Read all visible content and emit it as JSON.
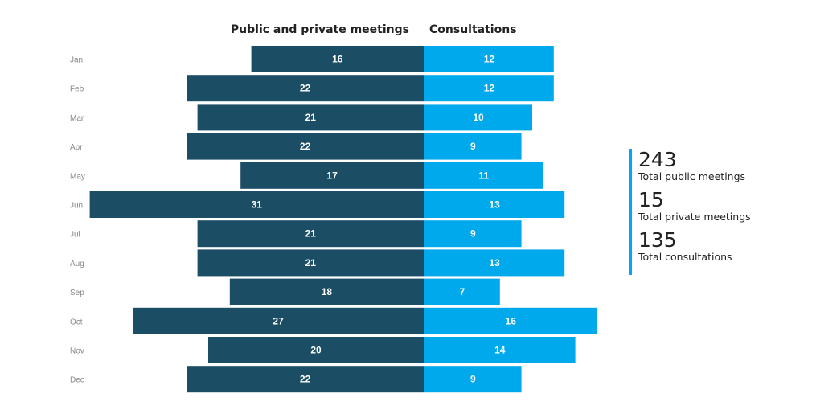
{
  "chart_data": {
    "type": "bar",
    "orientation": "horizontal-diverging",
    "categories": [
      "Jan",
      "Feb",
      "Mar",
      "Apr",
      "May",
      "Jun",
      "Jul",
      "Aug",
      "Sep",
      "Oct",
      "Nov",
      "Dec"
    ],
    "series": [
      {
        "name": "Public and private meetings",
        "side": "left",
        "color": "#1b4d64",
        "values": [
          16,
          22,
          21,
          22,
          17,
          31,
          21,
          21,
          18,
          27,
          20,
          22
        ]
      },
      {
        "name": "Consultations",
        "side": "right",
        "color": "#00a9ec",
        "values": [
          12,
          12,
          10,
          9,
          11,
          13,
          9,
          13,
          7,
          16,
          14,
          9
        ]
      }
    ],
    "data_label_color": "#ffffff",
    "category_label_color": "#888888"
  },
  "summary": {
    "items": [
      {
        "value": "243",
        "label": "Total public meetings"
      },
      {
        "value": "15",
        "label": "Total private meetings"
      },
      {
        "value": "135",
        "label": "Total consultations"
      }
    ],
    "accent_color": "#00a9ec"
  }
}
